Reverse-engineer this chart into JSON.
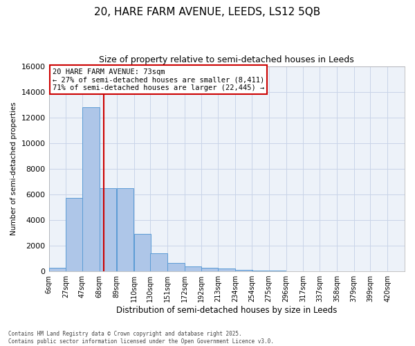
{
  "title_line1": "20, HARE FARM AVENUE, LEEDS, LS12 5QB",
  "title_line2": "Size of property relative to semi-detached houses in Leeds",
  "xlabel": "Distribution of semi-detached houses by size in Leeds",
  "ylabel": "Number of semi-detached properties",
  "footnote": "Contains HM Land Registry data © Crown copyright and database right 2025.\nContains public sector information licensed under the Open Government Licence v3.0.",
  "property_label": "20 HARE FARM AVENUE: 73sqm",
  "pct_smaller": 27,
  "pct_larger": 71,
  "n_smaller": 8411,
  "n_larger": 22445,
  "bin_labels": [
    "6sqm",
    "27sqm",
    "47sqm",
    "68sqm",
    "89sqm",
    "110sqm",
    "130sqm",
    "151sqm",
    "172sqm",
    "192sqm",
    "213sqm",
    "234sqm",
    "254sqm",
    "275sqm",
    "296sqm",
    "317sqm",
    "337sqm",
    "358sqm",
    "379sqm",
    "399sqm",
    "420sqm"
  ],
  "bin_edges": [
    6,
    27,
    47,
    68,
    89,
    110,
    130,
    151,
    172,
    192,
    213,
    234,
    254,
    275,
    296,
    317,
    337,
    358,
    379,
    399,
    420
  ],
  "bar_heights": [
    300,
    5700,
    12800,
    6500,
    6500,
    2900,
    1400,
    650,
    400,
    300,
    200,
    100,
    50,
    50,
    30,
    20,
    10,
    10,
    5,
    5,
    0
  ],
  "bar_color": "#aec6e8",
  "bar_edgecolor": "#5b9bd5",
  "vline_color": "#cc0000",
  "vline_x": 73,
  "annotation_box_color": "#cc0000",
  "ylim": [
    0,
    16000
  ],
  "yticks": [
    0,
    2000,
    4000,
    6000,
    8000,
    10000,
    12000,
    14000,
    16000
  ],
  "grid_color": "#c8d4e8",
  "bg_color": "#edf2f9",
  "title_fontsize": 11,
  "subtitle_fontsize": 9
}
